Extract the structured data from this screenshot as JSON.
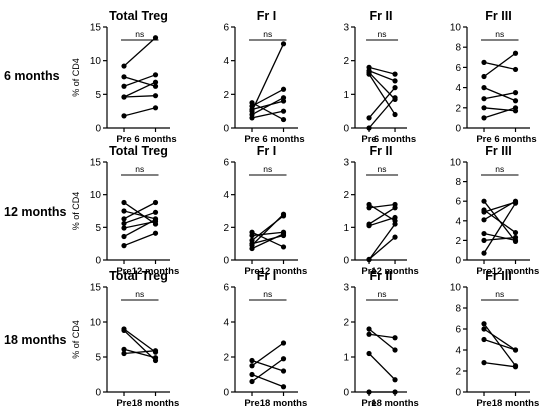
{
  "row_labels": [
    "6 months",
    "12 months",
    "18 months"
  ],
  "chart_data": [
    {
      "type": "scatter",
      "title": "Total Treg",
      "ylabel": "% of CD4",
      "categories": [
        "Pre",
        "6 months"
      ],
      "ylim": [
        0,
        15
      ],
      "yticks": [
        0,
        5,
        10,
        15
      ],
      "annotation": "ns",
      "series": [
        {
          "values": [
            9.2,
            13.4
          ]
        },
        {
          "values": [
            7.6,
            6.2
          ]
        },
        {
          "values": [
            6.2,
            7.9
          ]
        },
        {
          "values": [
            4.6,
            6.8
          ]
        },
        {
          "values": [
            4.6,
            4.8
          ]
        },
        {
          "values": [
            1.8,
            3.0
          ]
        }
      ]
    },
    {
      "type": "scatter",
      "title": "Fr I",
      "categories": [
        "Pre",
        "6 months"
      ],
      "ylim": [
        0,
        6
      ],
      "yticks": [
        0,
        2,
        4,
        6
      ],
      "annotation": "ns",
      "series": [
        {
          "values": [
            1.5,
            0.5
          ]
        },
        {
          "values": [
            1.3,
            2.3
          ]
        },
        {
          "values": [
            1.1,
            1.6
          ]
        },
        {
          "values": [
            1.0,
            5.0
          ]
        },
        {
          "values": [
            0.8,
            1.8
          ]
        },
        {
          "values": [
            0.6,
            1.0
          ]
        }
      ]
    },
    {
      "type": "scatter",
      "title": "Fr II",
      "categories": [
        "Pre",
        "6 months"
      ],
      "ylim": [
        0,
        3
      ],
      "yticks": [
        0,
        1,
        2,
        3
      ],
      "annotation": "ns",
      "series": [
        {
          "values": [
            1.8,
            1.6
          ]
        },
        {
          "values": [
            1.7,
            1.4
          ]
        },
        {
          "values": [
            1.65,
            0.85
          ]
        },
        {
          "values": [
            1.6,
            0.4
          ]
        },
        {
          "values": [
            0.3,
            1.2
          ]
        },
        {
          "values": [
            0.0,
            0.9
          ]
        }
      ]
    },
    {
      "type": "scatter",
      "title": "Fr III",
      "categories": [
        "Pre",
        "6 months"
      ],
      "ylim": [
        0,
        10
      ],
      "yticks": [
        0,
        2,
        4,
        6,
        8,
        10
      ],
      "annotation": "ns",
      "series": [
        {
          "values": [
            6.5,
            5.8
          ]
        },
        {
          "values": [
            5.1,
            7.4
          ]
        },
        {
          "values": [
            4.0,
            2.7
          ]
        },
        {
          "values": [
            2.9,
            3.5
          ]
        },
        {
          "values": [
            2.0,
            1.7
          ]
        },
        {
          "values": [
            1.0,
            2.0
          ]
        }
      ]
    },
    {
      "type": "scatter",
      "title": "Total Treg",
      "ylabel": "% of CD4",
      "categories": [
        "Pre",
        "12 months"
      ],
      "ylim": [
        0,
        15
      ],
      "yticks": [
        0,
        5,
        10,
        15
      ],
      "annotation": "ns",
      "series": [
        {
          "values": [
            8.8,
            5.5
          ]
        },
        {
          "values": [
            7.5,
            6.3
          ]
        },
        {
          "values": [
            6.3,
            8.8
          ]
        },
        {
          "values": [
            5.6,
            7.3
          ]
        },
        {
          "values": [
            4.9,
            5.9
          ]
        },
        {
          "values": [
            3.6,
            6.2
          ]
        },
        {
          "values": [
            2.2,
            4.1
          ]
        }
      ]
    },
    {
      "type": "scatter",
      "title": "Fr I",
      "categories": [
        "Pre",
        "12 months"
      ],
      "ylim": [
        0,
        6
      ],
      "yticks": [
        0,
        2,
        4,
        6
      ],
      "annotation": "ns",
      "series": [
        {
          "values": [
            1.7,
            0.8
          ]
        },
        {
          "values": [
            1.5,
            1.7
          ]
        },
        {
          "values": [
            1.2,
            2.7
          ]
        },
        {
          "values": [
            1.0,
            1.5
          ]
        },
        {
          "values": [
            0.9,
            2.8
          ]
        },
        {
          "values": [
            0.7,
            1.6
          ]
        }
      ]
    },
    {
      "type": "scatter",
      "title": "Fr II",
      "categories": [
        "Pre",
        "12 months"
      ],
      "ylim": [
        0,
        3
      ],
      "yticks": [
        0,
        1,
        2,
        3
      ],
      "annotation": "ns",
      "series": [
        {
          "values": [
            1.7,
            1.2
          ]
        },
        {
          "values": [
            1.6,
            1.7
          ]
        },
        {
          "values": [
            1.1,
            1.6
          ]
        },
        {
          "values": [
            1.05,
            1.3
          ]
        },
        {
          "values": [
            0.02,
            0.7
          ]
        },
        {
          "values": [
            0.01,
            1.1
          ]
        }
      ]
    },
    {
      "type": "scatter",
      "title": "Fr III",
      "categories": [
        "Pre",
        "12 months"
      ],
      "ylim": [
        0,
        10
      ],
      "yticks": [
        0,
        2,
        4,
        6,
        8,
        10
      ],
      "annotation": "ns",
      "series": [
        {
          "values": [
            6.0,
            1.9
          ]
        },
        {
          "values": [
            5.1,
            2.8
          ]
        },
        {
          "values": [
            4.9,
            5.9
          ]
        },
        {
          "values": [
            4.1,
            6.0
          ]
        },
        {
          "values": [
            2.7,
            2.0
          ]
        },
        {
          "values": [
            2.0,
            2.3
          ]
        },
        {
          "values": [
            0.7,
            5.8
          ]
        }
      ]
    },
    {
      "type": "scatter",
      "title": "Total Treg",
      "ylabel": "% of CD4",
      "categories": [
        "Pre",
        "18 months"
      ],
      "ylim": [
        0,
        15
      ],
      "yticks": [
        0,
        5,
        10,
        15
      ],
      "annotation": "ns",
      "series": [
        {
          "values": [
            9.0,
            5.7
          ]
        },
        {
          "values": [
            8.8,
            4.5
          ]
        },
        {
          "values": [
            6.1,
            4.9
          ]
        },
        {
          "values": [
            5.5,
            5.9
          ]
        }
      ]
    },
    {
      "type": "scatter",
      "title": "Fr I",
      "categories": [
        "Pre",
        "18 months"
      ],
      "ylim": [
        0,
        6
      ],
      "yticks": [
        0,
        2,
        4,
        6
      ],
      "annotation": "ns",
      "series": [
        {
          "values": [
            1.8,
            1.2
          ]
        },
        {
          "values": [
            1.5,
            2.8
          ]
        },
        {
          "values": [
            1.0,
            0.3
          ]
        },
        {
          "values": [
            0.6,
            1.9
          ]
        }
      ]
    },
    {
      "type": "scatter",
      "title": "Fr II",
      "categories": [
        "Pre",
        "18 months"
      ],
      "ylim": [
        0,
        3
      ],
      "yticks": [
        0,
        1,
        2,
        3
      ],
      "annotation": "ns",
      "series": [
        {
          "values": [
            1.8,
            1.2
          ]
        },
        {
          "values": [
            1.65,
            1.55
          ]
        },
        {
          "values": [
            1.1,
            0.35
          ]
        },
        {
          "values": [
            0.0,
            0.0
          ]
        }
      ]
    },
    {
      "type": "scatter",
      "title": "Fr III",
      "categories": [
        "Pre",
        "18 months"
      ],
      "ylim": [
        0,
        10
      ],
      "yticks": [
        0,
        2,
        4,
        6,
        8,
        10
      ],
      "annotation": "ns",
      "series": [
        {
          "values": [
            6.5,
            2.5
          ]
        },
        {
          "values": [
            6.0,
            4.0
          ]
        },
        {
          "values": [
            5.0,
            4.0
          ]
        },
        {
          "values": [
            2.8,
            2.4
          ]
        }
      ]
    }
  ]
}
